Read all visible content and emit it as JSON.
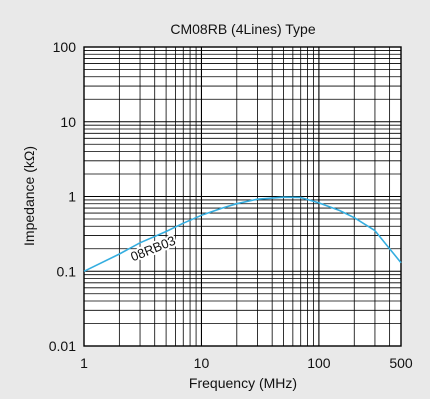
{
  "chart_data": {
    "type": "line",
    "title": "CM08RB (4Lines) Type",
    "xlabel": "Frequency (MHz)",
    "ylabel": "Impedance (kΩ)",
    "xscale": "log",
    "yscale": "log",
    "xlim": [
      1,
      500
    ],
    "ylim": [
      0.01,
      100
    ],
    "grid": true,
    "x_ticks": [
      1,
      10,
      100,
      500
    ],
    "x_tick_labels": [
      "1",
      "10",
      "100",
      "500"
    ],
    "y_ticks": [
      0.01,
      0.1,
      1,
      10,
      100
    ],
    "y_tick_labels": [
      "0.01",
      "0.1",
      "1",
      "10",
      "100"
    ],
    "series": [
      {
        "name": "08RB03",
        "color": "#35aee0",
        "x": [
          1,
          2,
          3,
          5,
          7,
          10,
          15,
          20,
          30,
          50,
          70,
          100,
          150,
          200,
          300,
          400,
          500
        ],
        "y": [
          0.1,
          0.17,
          0.24,
          0.34,
          0.44,
          0.56,
          0.7,
          0.8,
          0.92,
          0.98,
          0.97,
          0.82,
          0.65,
          0.52,
          0.35,
          0.2,
          0.13
        ]
      }
    ]
  }
}
